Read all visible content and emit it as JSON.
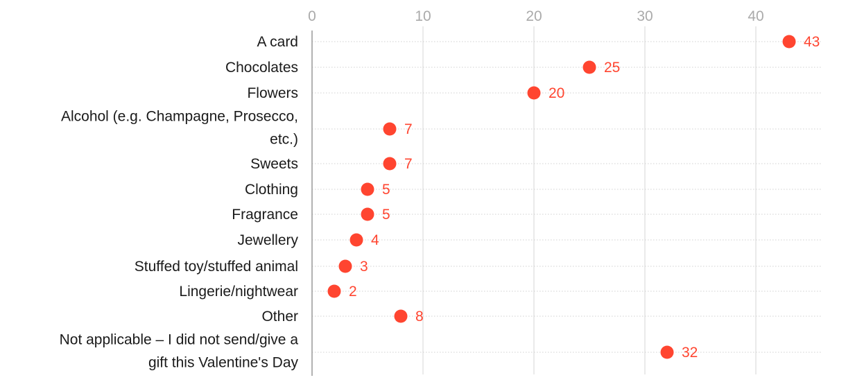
{
  "colors": {
    "dot": "#ff4530",
    "value_text": "#ff4530",
    "grid": "#dddddd",
    "row_line": "#d0d0d0",
    "axis": "#999999",
    "tick_text": "#aaaaaa",
    "label_text": "#1a1a1a"
  },
  "chart_data": {
    "type": "scatter",
    "orientation": "horizontal dot plot",
    "title": "",
    "xlabel": "",
    "ylabel": "",
    "xlim": [
      0,
      46
    ],
    "xticks": [
      0,
      10,
      20,
      30,
      40
    ],
    "x_axis_position": "top",
    "grid": true,
    "legend": "none",
    "categories": [
      {
        "label": [
          "A card"
        ],
        "value": 43
      },
      {
        "label": [
          "Chocolates"
        ],
        "value": 25
      },
      {
        "label": [
          "Flowers"
        ],
        "value": 20
      },
      {
        "label": [
          "Alcohol (e.g. Champagne, Prosecco,",
          "etc.)"
        ],
        "value": 7
      },
      {
        "label": [
          "Sweets"
        ],
        "value": 7
      },
      {
        "label": [
          "Clothing"
        ],
        "value": 5
      },
      {
        "label": [
          "Fragrance"
        ],
        "value": 5
      },
      {
        "label": [
          "Jewellery"
        ],
        "value": 4
      },
      {
        "label": [
          "Stuffed toy/stuffed animal"
        ],
        "value": 3
      },
      {
        "label": [
          "Lingerie/nightwear"
        ],
        "value": 2
      },
      {
        "label": [
          "Other"
        ],
        "value": 8
      },
      {
        "label": [
          "Not applicable – I did not send/give a",
          "gift this Valentine's Day"
        ],
        "value": 32
      }
    ]
  }
}
